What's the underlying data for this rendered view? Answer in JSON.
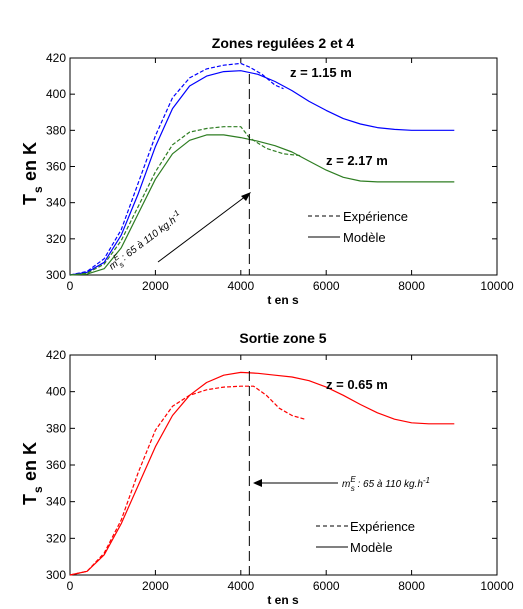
{
  "chart_data": [
    {
      "type": "line",
      "title": "Zones regulées 2 et 4",
      "xlabel": "t en s",
      "ylabel": "T",
      "ylabel_sub": "s",
      "ylabel_rest": "en K",
      "xlim": [
        0,
        10000
      ],
      "ylim": [
        300,
        420
      ],
      "xticks": [
        "0",
        "2000",
        "4000",
        "6000",
        "8000",
        "10000"
      ],
      "yticks": [
        "300",
        "320",
        "340",
        "360",
        "380",
        "400",
        "420"
      ],
      "grid": false,
      "legend": {
        "placement": "center-right",
        "entries": [
          {
            "label": "Expérience",
            "style": "dashed"
          },
          {
            "label": "Modèle",
            "style": "solid"
          }
        ]
      },
      "vline_x": 4200,
      "note": "m_s^E : 65 à 110 kg.h^-1",
      "note_parts": {
        "base": "m",
        "sup": "E",
        "sub": "s",
        "text": " : 65 à 110 kg.h",
        "exp": "-1"
      },
      "series": [
        {
          "label": "z = 1.15 m",
          "color": "#0000ff",
          "style": "solid",
          "x": [
            0,
            400,
            800,
            1200,
            1600,
            2000,
            2400,
            2800,
            3200,
            3600,
            4000,
            4400,
            4800,
            5200,
            5600,
            6000,
            6400,
            6800,
            7200,
            7600,
            8000,
            8400,
            8800,
            9000
          ],
          "y": [
            300,
            301.5,
            307,
            322,
            345,
            371,
            392,
            404.5,
            410,
            412.5,
            413,
            411,
            407,
            402,
            396,
            391,
            386.5,
            383.5,
            381.5,
            380.5,
            380,
            380,
            380,
            380
          ]
        },
        {
          "label": "",
          "color": "#0000ff",
          "style": "dashed",
          "x": [
            0,
            400,
            800,
            1200,
            1600,
            2000,
            2400,
            2800,
            3200,
            3600,
            4000,
            4200,
            4500,
            4800,
            5000
          ],
          "y": [
            300,
            302,
            309,
            325,
            351,
            377,
            398,
            409,
            414,
            416,
            417,
            415,
            411,
            405,
            403
          ]
        },
        {
          "label": "z = 2.17 m",
          "color": "#2e7d22",
          "style": "solid",
          "x": [
            0,
            400,
            800,
            1200,
            1600,
            2000,
            2400,
            2800,
            3200,
            3600,
            4000,
            4400,
            4800,
            5200,
            5600,
            6000,
            6400,
            6800,
            7200,
            7600,
            8000,
            8400,
            8800,
            9000
          ],
          "y": [
            300,
            300.5,
            303.5,
            315,
            334,
            353,
            367,
            374.5,
            377.5,
            377.5,
            376,
            374,
            371.5,
            368,
            363,
            358,
            354,
            352,
            351.5,
            351.5,
            351.5,
            351.5,
            351.5,
            351.5
          ]
        },
        {
          "label": "",
          "color": "#2e7d22",
          "style": "dashed",
          "x": [
            0,
            400,
            800,
            1200,
            1600,
            2000,
            2400,
            2800,
            3200,
            3600,
            4000,
            4200,
            4600,
            5000,
            5400
          ],
          "y": [
            300,
            301,
            306,
            319,
            338,
            357,
            372,
            379,
            381,
            382,
            382,
            376,
            370,
            367,
            366
          ]
        }
      ]
    },
    {
      "type": "line",
      "title": "Sortie zone 5",
      "xlabel": "t en s",
      "ylabel": "T",
      "ylabel_sub": "s",
      "ylabel_rest": "en K",
      "xlim": [
        0,
        10000
      ],
      "ylim": [
        300,
        420
      ],
      "xticks": [
        "0",
        "2000",
        "4000",
        "6000",
        "8000",
        "10000"
      ],
      "yticks": [
        "300",
        "320",
        "340",
        "360",
        "380",
        "400",
        "420"
      ],
      "grid": false,
      "legend": {
        "placement": "bottom-right",
        "entries": [
          {
            "label": "Expérience",
            "style": "dashed"
          },
          {
            "label": "Modèle",
            "style": "solid"
          }
        ]
      },
      "vline_x": 4200,
      "note": "m_s^E : 65 à 110 kg.h^-1",
      "note_parts": {
        "base": "m",
        "sup": "E",
        "sub": "s",
        "text": " : 65 à 110 kg.h",
        "exp": "-1"
      },
      "series": [
        {
          "label": "z = 0.65 m",
          "color": "#ff0000",
          "style": "solid",
          "x": [
            0,
            400,
            800,
            1200,
            1600,
            2000,
            2400,
            2800,
            3200,
            3600,
            4000,
            4400,
            4800,
            5200,
            5600,
            6000,
            6400,
            6800,
            7200,
            7600,
            8000,
            8400,
            8800,
            9000
          ],
          "y": [
            300,
            302,
            311,
            328,
            349,
            370,
            387,
            398,
            405,
            409,
            410.5,
            410,
            409,
            408,
            406,
            402.5,
            398,
            393,
            388.5,
            385,
            383,
            382.5,
            382.5,
            382.5
          ]
        },
        {
          "label": "",
          "color": "#ff0000",
          "style": "dashed",
          "x": [
            0,
            400,
            800,
            1200,
            1600,
            2000,
            2400,
            2800,
            3200,
            3600,
            4000,
            4300,
            4600,
            4900,
            5200,
            5500
          ],
          "y": [
            300,
            302,
            312,
            330,
            356,
            379,
            392,
            398,
            401,
            402.5,
            403,
            403,
            398,
            391,
            387,
            385
          ]
        }
      ]
    }
  ]
}
